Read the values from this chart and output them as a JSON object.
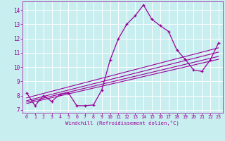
{
  "xlabel": "Windchill (Refroidissement éolien,°C)",
  "bg_color": "#c8eef0",
  "line_color": "#990099",
  "grid_color": "#b0d8dc",
  "xlim": [
    -0.5,
    23.5
  ],
  "ylim": [
    6.8,
    14.6
  ],
  "yticks": [
    7,
    8,
    9,
    10,
    11,
    12,
    13,
    14
  ],
  "xticks": [
    0,
    1,
    2,
    3,
    4,
    5,
    6,
    7,
    8,
    9,
    10,
    11,
    12,
    13,
    14,
    15,
    16,
    17,
    18,
    19,
    20,
    21,
    22,
    23
  ],
  "main_x": [
    0,
    1,
    2,
    3,
    4,
    5,
    6,
    7,
    8,
    9,
    10,
    11,
    12,
    13,
    14,
    15,
    16,
    17,
    18,
    19,
    20,
    21,
    22,
    23
  ],
  "main_y": [
    8.2,
    7.3,
    8.0,
    7.6,
    8.1,
    8.2,
    7.3,
    7.3,
    7.35,
    8.4,
    10.5,
    12.0,
    13.0,
    13.6,
    14.35,
    13.35,
    12.9,
    12.5,
    11.2,
    10.55,
    9.8,
    9.7,
    10.5,
    11.7
  ],
  "reg_lines": [
    {
      "x": [
        0,
        23
      ],
      "y": [
        7.85,
        11.35
      ]
    },
    {
      "x": [
        0,
        23
      ],
      "y": [
        7.65,
        11.05
      ]
    },
    {
      "x": [
        0,
        23
      ],
      "y": [
        7.55,
        10.75
      ]
    },
    {
      "x": [
        0,
        23
      ],
      "y": [
        7.45,
        10.55
      ]
    }
  ]
}
